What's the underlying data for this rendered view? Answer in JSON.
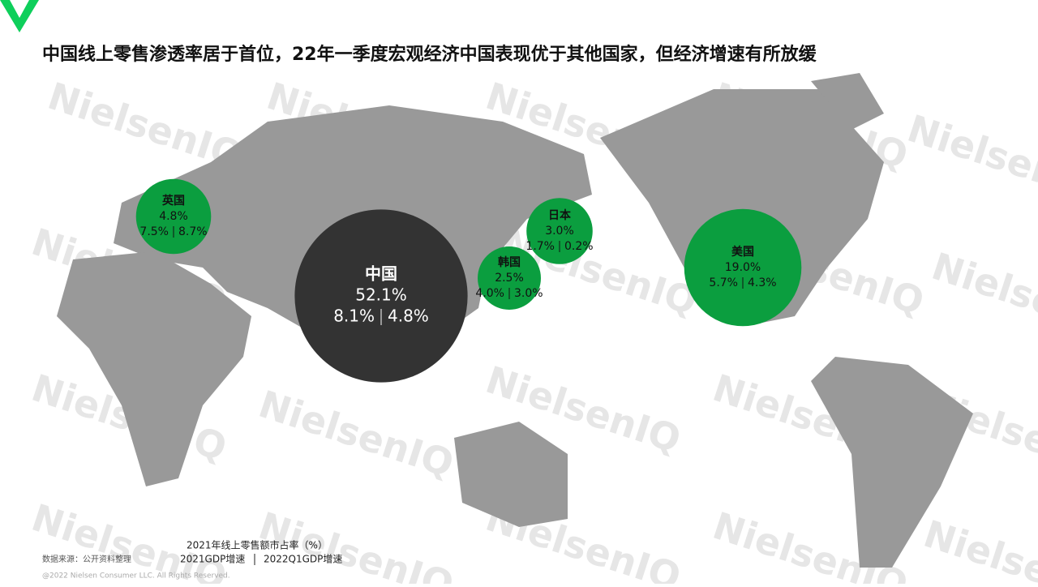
{
  "chart_data": {
    "type": "bubble",
    "title": "中国线上零售渗透率居于首位，22年一季度宏观经济中国表现优于其他国家，但经济增速有所放缓",
    "categories": [
      "中国",
      "美国",
      "英国",
      "日本",
      "韩国"
    ],
    "colors": [
      "#333333",
      "#0b9e3f",
      "#0b9e3f",
      "#0b9e3f",
      "#0b9e3f"
    ],
    "series": [
      {
        "name": "2021年线上零售额市占率（%）",
        "values": [
          52.1,
          19.0,
          4.8,
          3.0,
          2.5
        ],
        "value_labels": [
          "52.1%",
          "19.0%",
          "4.8%",
          "3.0%",
          "2.5%"
        ]
      },
      {
        "name": "2021GDP增速",
        "values": [
          8.1,
          5.7,
          7.5,
          1.7,
          4.0
        ],
        "value_labels": [
          "8.1%",
          "5.7%",
          "7.5%",
          "1.7%",
          "4.0%"
        ]
      },
      {
        "name": "2022Q1GDP增速",
        "values": [
          4.8,
          4.3,
          8.7,
          0.2,
          3.0
        ],
        "value_labels": [
          "4.8%",
          "4.3%",
          "8.7%",
          "0.2%",
          "3.0%"
        ]
      }
    ],
    "source": "数据来源：公开资料整理",
    "copyright": "@2022 Nielsen Consumer LLC. All Rights Reserved.",
    "watermark": "NielsenIQ"
  }
}
